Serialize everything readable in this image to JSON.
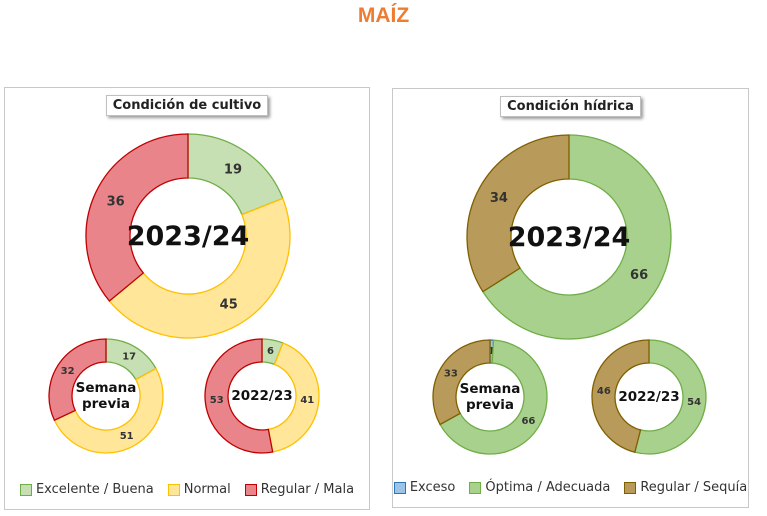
{
  "page": {
    "title": "MAÍZ"
  },
  "chart_data": [
    {
      "type": "pie",
      "title": "Condición  de cultivo",
      "legend": [
        {
          "label": "Excelente / Buena",
          "fill": "#c6e0b4",
          "stroke": "#70ad47"
        },
        {
          "label": "Normal",
          "fill": "#ffe699",
          "stroke": "#ffc000"
        },
        {
          "label": "Regular / Mala",
          "fill": "#e8848a",
          "stroke": "#c00000"
        }
      ],
      "donuts": [
        {
          "center_label": "2023/24",
          "values": [
            19,
            45,
            36
          ]
        },
        {
          "center_label": "Semana previa",
          "values": [
            17,
            51,
            32
          ]
        },
        {
          "center_label": "2022/23",
          "values": [
            6,
            41,
            53
          ]
        }
      ]
    },
    {
      "type": "pie",
      "title": "Condición  hídrica",
      "legend": [
        {
          "label": "Exceso",
          "fill": "#9dc3e6",
          "stroke": "#2e75b6"
        },
        {
          "label": "Óptima / Adecuada",
          "fill": "#a9d18e",
          "stroke": "#70ad47"
        },
        {
          "label": "Regular / Sequía",
          "fill": "#b89a5a",
          "stroke": "#7f6000"
        }
      ],
      "donuts": [
        {
          "center_label": "2023/24",
          "values": [
            0,
            66,
            34
          ]
        },
        {
          "center_label": "Semana previa",
          "values": [
            1,
            66,
            33
          ]
        },
        {
          "center_label": "2022/23",
          "values": [
            0,
            54,
            46
          ]
        }
      ]
    }
  ]
}
